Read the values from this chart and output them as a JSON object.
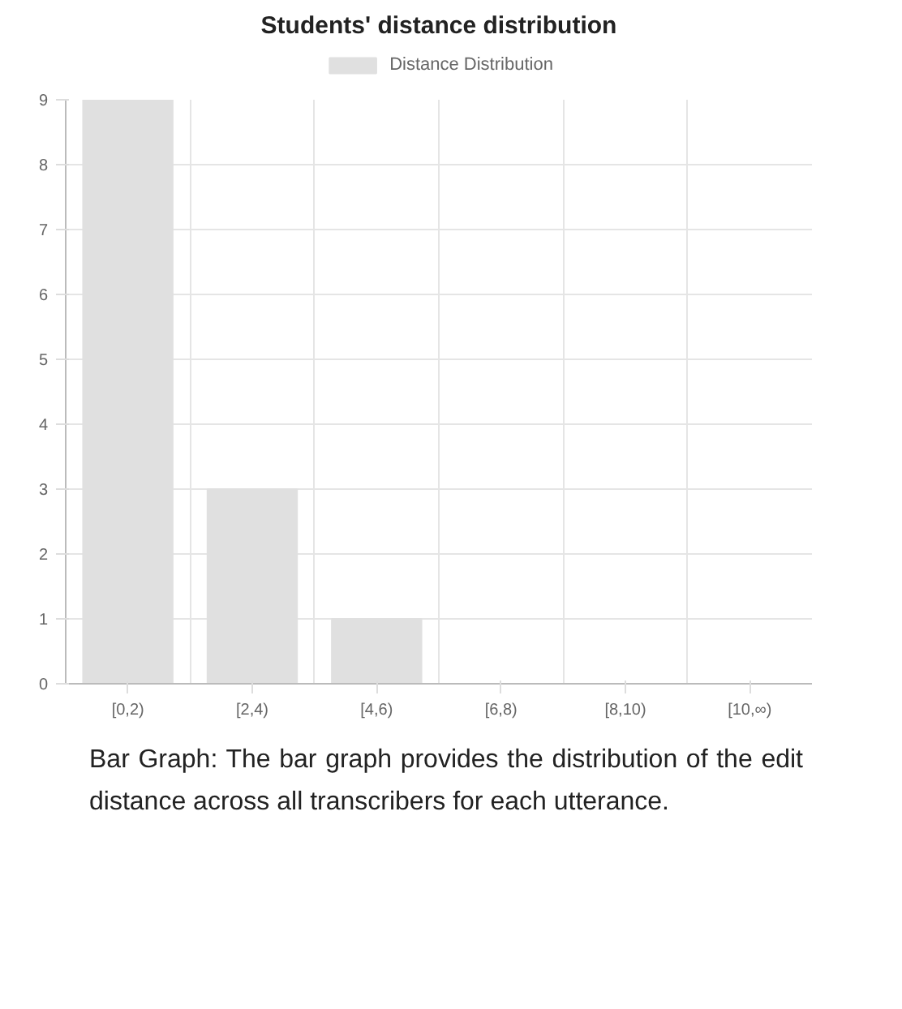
{
  "chart_data": {
    "type": "bar",
    "title": "Students' distance distribution",
    "categories": [
      "[0,2)",
      "[2,4)",
      "[4,6)",
      "[6,8)",
      "[8,10)",
      "[10,∞)"
    ],
    "series": [
      {
        "name": "Distance Distribution",
        "color": "#e0e0e0",
        "values": [
          9,
          3,
          1,
          0,
          0,
          0
        ]
      }
    ],
    "ylim": [
      0,
      9
    ],
    "yticks": [
      0,
      1,
      2,
      3,
      4,
      5,
      6,
      7,
      8,
      9
    ],
    "grid": true,
    "legend": "top",
    "annotations": [
      "Bar Graph: The bar graph provides the distribution of the edit distance across all transcribers for each utterance."
    ]
  }
}
